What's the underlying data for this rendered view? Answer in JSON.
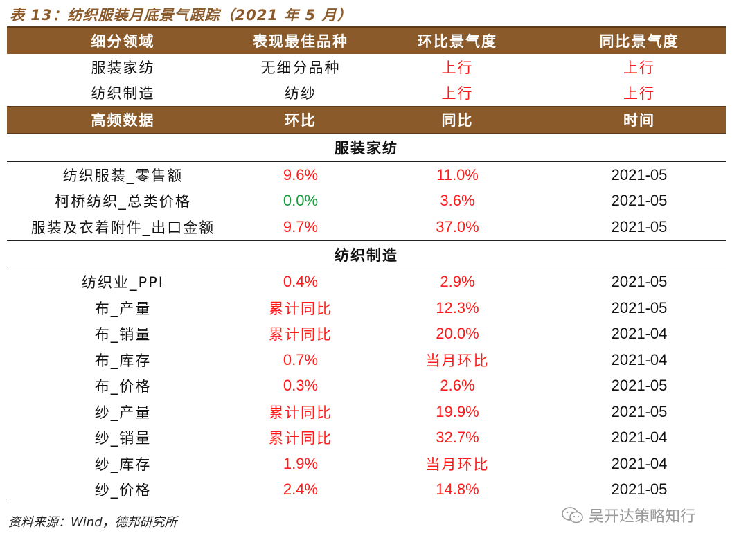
{
  "title": "表 13：纺织服装月底景气跟踪（2021 年 5 月）",
  "top_header": [
    "细分领域",
    "表现最佳品种",
    "环比景气度",
    "同比景气度"
  ],
  "top_rows": [
    {
      "sector": "服装家纺",
      "best": "无细分品种",
      "mom": "上行",
      "yoy": "上行"
    },
    {
      "sector": "纺织制造",
      "best": "纺纱",
      "mom": "上行",
      "yoy": "上行"
    }
  ],
  "hf_header": [
    "高频数据",
    "环比",
    "同比",
    "时间"
  ],
  "section1": {
    "title": "服装家纺",
    "rows": [
      {
        "name": "纺织服装_零售额",
        "mom": "9.6%",
        "yoy": "11.0%",
        "date": "2021-05"
      },
      {
        "name": "柯桥纺织_总类价格",
        "mom": "0.0%",
        "yoy": "3.6%",
        "date": "2021-05"
      },
      {
        "name": "服装及衣着附件_出口金额",
        "mom": "9.7%",
        "yoy": "37.0%",
        "date": "2021-05"
      }
    ]
  },
  "section2": {
    "title": "纺织制造",
    "rows": [
      {
        "name": "纺织业_PPI",
        "mom": "0.4%",
        "yoy": "2.9%",
        "date": "2021-05"
      },
      {
        "name": "布_产量",
        "mom": "累计同比",
        "yoy": "12.3%",
        "date": "2021-05"
      },
      {
        "name": "布_销量",
        "mom": "累计同比",
        "yoy": "20.0%",
        "date": "2021-04"
      },
      {
        "name": "布_库存",
        "mom": "0.7%",
        "yoy": "当月环比",
        "date": "2021-04"
      },
      {
        "name": "布_价格",
        "mom": "0.3%",
        "yoy": "2.6%",
        "date": "2021-05"
      },
      {
        "name": "纱_产量",
        "mom": "累计同比",
        "yoy": "19.9%",
        "date": "2021-05"
      },
      {
        "name": "纱_销量",
        "mom": "累计同比",
        "yoy": "32.7%",
        "date": "2021-04"
      },
      {
        "name": "纱_库存",
        "mom": "1.9%",
        "yoy": "当月环比",
        "date": "2021-04"
      },
      {
        "name": "纱_价格",
        "mom": "2.4%",
        "yoy": "14.8%",
        "date": "2021-05"
      }
    ]
  },
  "source": "资料来源：Wind，德邦研究所",
  "watermark": "吴开达策略知行",
  "colors": {
    "header_bg": "#8b5a2b",
    "up": "#ff1a1a",
    "flat": "#12a03a"
  }
}
